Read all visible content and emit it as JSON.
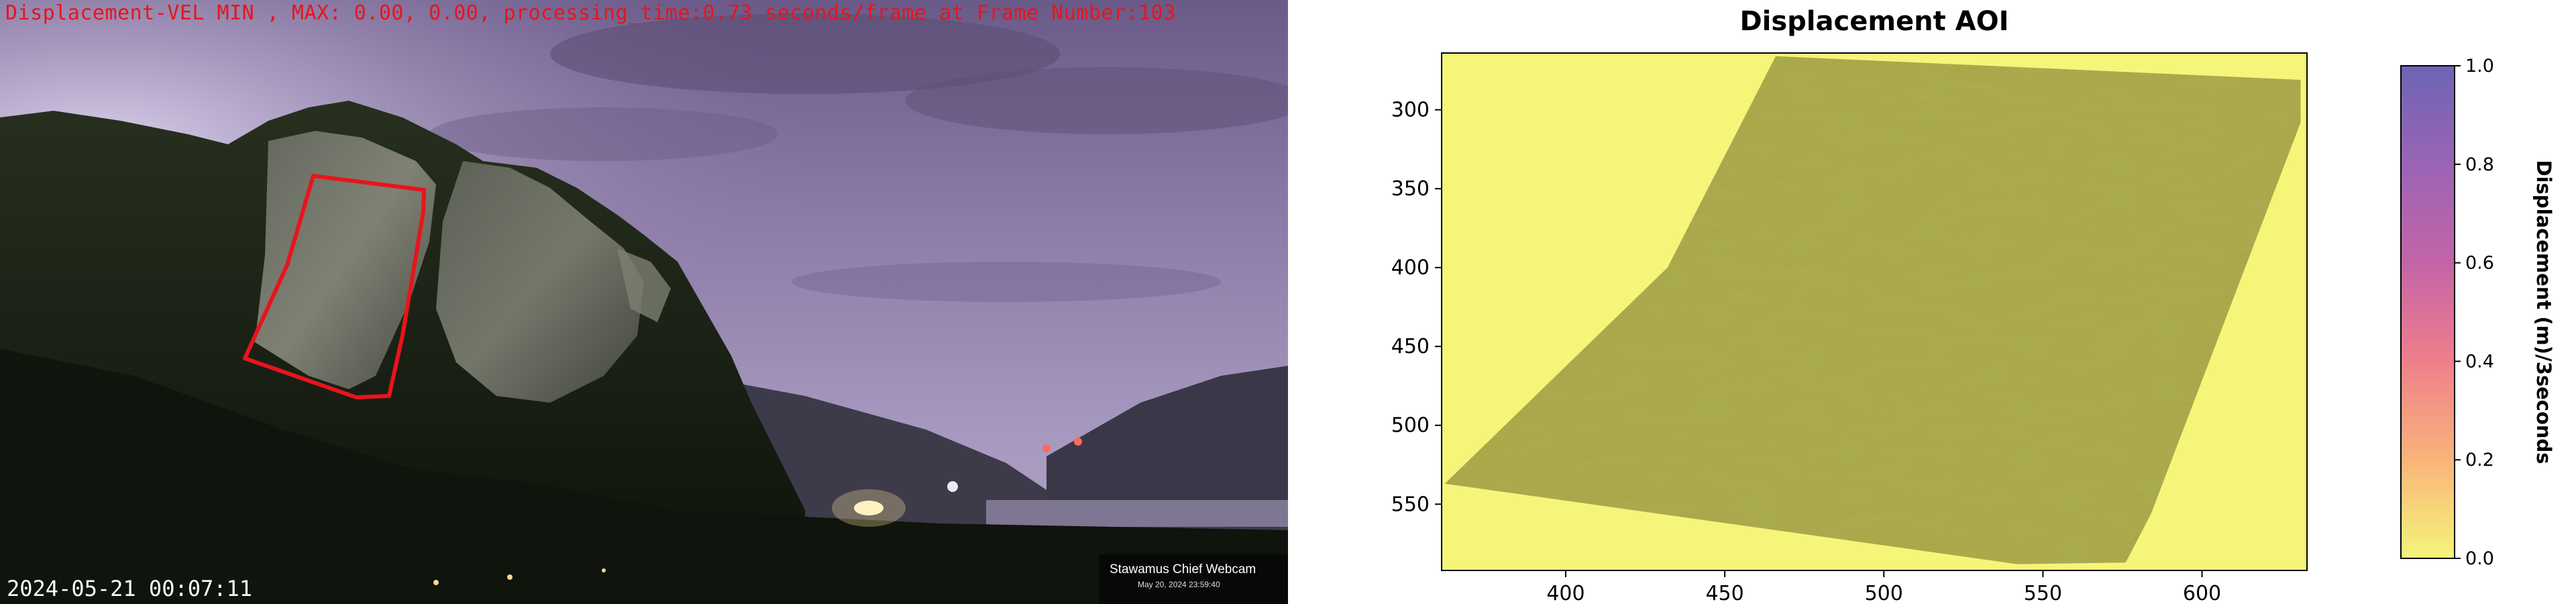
{
  "webcam": {
    "overlay_text": "Displacement-VEL MIN , MAX: 0.00, 0.00, processing_time:0.73 seconds/frame at Frame Number:103",
    "timestamp": "2024-05-21 00:07:11",
    "watermark_title": "Stawamus Chief Webcam",
    "watermark_date": "May 20, 2024 23:59:40",
    "aoi_outline_color": "#e8141c"
  },
  "chart_data": {
    "type": "heatmap",
    "title": "Displacement AOI",
    "xlabel": "",
    "ylabel": "",
    "x_ticks": [
      400,
      450,
      500,
      550,
      600
    ],
    "y_ticks": [
      300,
      350,
      400,
      450,
      500,
      550
    ],
    "xlim": [
      361,
      633
    ],
    "ylim": [
      592,
      264
    ],
    "colorbar": {
      "label": "Displacement (m)/3seconds",
      "range": [
        0.0,
        1.0
      ],
      "ticks": [
        "0.0",
        "0.2",
        "0.4",
        "0.6",
        "0.8",
        "1.0"
      ],
      "colors": [
        "#f5f57a",
        "#f9b47a",
        "#ef7f8b",
        "#c464a8",
        "#9a64b5",
        "#6e64b5"
      ]
    },
    "aoi_polygon": [
      [
        466,
        266
      ],
      [
        631,
        281
      ],
      [
        631,
        308
      ],
      [
        584,
        556
      ],
      [
        576,
        587
      ],
      [
        542,
        588
      ],
      [
        362,
        537
      ],
      [
        432,
        400
      ]
    ],
    "values_summary": {
      "min": 0.0,
      "max": 0.0
    }
  }
}
